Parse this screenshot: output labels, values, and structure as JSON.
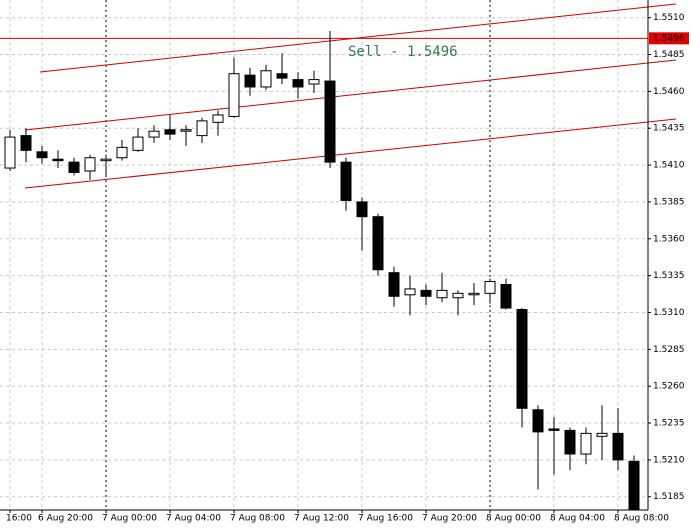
{
  "chart_data": {
    "type": "candlestick",
    "categories": [
      "16:00",
      null,
      "6 Aug 20:00",
      null,
      null,
      null,
      "7 Aug 00:00",
      null,
      null,
      null,
      "7 Aug 04:00",
      null,
      null,
      null,
      "7 Aug 08:00",
      null,
      null,
      null,
      "7 Aug 12:00",
      null,
      null,
      null,
      "7 Aug 16:00",
      null,
      null,
      null,
      "7 Aug 20:00",
      null,
      null,
      null,
      "8 Aug 00:00",
      null,
      null,
      null,
      "8 Aug 04:00",
      null,
      null,
      null,
      "8 Aug 08:00",
      null
    ],
    "open": [
      1.5408,
      1.543,
      1.5419,
      1.5414,
      1.5412,
      1.5406,
      1.5413,
      1.5415,
      1.542,
      1.5429,
      1.5434,
      1.5433,
      1.543,
      1.5439,
      1.5443,
      1.5471,
      1.5463,
      1.5472,
      1.5468,
      1.5465,
      1.5467,
      1.5412,
      1.5385,
      1.5375,
      1.5337,
      1.5322,
      1.5325,
      1.532,
      1.532,
      1.5322,
      1.5323,
      1.5329,
      1.5312,
      1.5244,
      1.5231,
      1.523,
      1.5214,
      1.5226,
      1.5228,
      1.5209
    ],
    "high": [
      1.5434,
      1.5435,
      1.5423,
      1.542,
      1.5415,
      1.5417,
      1.5417,
      1.5427,
      1.5435,
      1.5437,
      1.5444,
      1.5437,
      1.5442,
      1.5447,
      1.5483,
      1.5476,
      1.5478,
      1.5486,
      1.5473,
      1.5474,
      1.5501,
      1.5415,
      1.5388,
      1.5377,
      1.5341,
      1.5335,
      1.5329,
      1.5337,
      1.5325,
      1.533,
      1.5333,
      1.5333,
      1.5313,
      1.5247,
      1.5239,
      1.5232,
      1.5232,
      1.5247,
      1.5245,
      1.5213
    ],
    "low": [
      1.5406,
      1.5412,
      1.5411,
      1.5408,
      1.5403,
      1.54,
      1.5403,
      1.5413,
      1.5419,
      1.5425,
      1.5427,
      1.5423,
      1.5425,
      1.543,
      1.5442,
      1.5457,
      1.5461,
      1.5465,
      1.5455,
      1.5459,
      1.5408,
      1.5379,
      1.5352,
      1.5335,
      1.5314,
      1.5308,
      1.5315,
      1.5317,
      1.5308,
      1.5315,
      1.5316,
      1.5312,
      1.5232,
      1.519,
      1.52,
      1.5203,
      1.5207,
      1.521,
      1.5203,
      1.5176
    ],
    "close": [
      1.5429,
      1.542,
      1.5415,
      1.5413,
      1.5405,
      1.5415,
      1.5414,
      1.5422,
      1.5429,
      1.5433,
      1.5431,
      1.5434,
      1.544,
      1.5444,
      1.5472,
      1.5463,
      1.5474,
      1.5469,
      1.5463,
      1.5468,
      1.5412,
      1.5386,
      1.5375,
      1.5339,
      1.5321,
      1.5326,
      1.5321,
      1.5325,
      1.5323,
      1.5323,
      1.5331,
      1.5313,
      1.5245,
      1.5229,
      1.523,
      1.5214,
      1.5228,
      1.5228,
      1.521,
      1.5176
    ],
    "ylim": [
      1.5176,
      1.5522
    ],
    "yticks": [
      {
        "value": 1.551,
        "label": "1.5510"
      },
      1.5485,
      {
        "value": 1.546,
        "label": "1.5460"
      },
      1.5435,
      {
        "value": 1.541,
        "label": "1.5410"
      },
      1.5385,
      {
        "value": 1.536,
        "label": "1.5360"
      },
      1.5335,
      {
        "value": 1.531,
        "label": "1.5310"
      },
      1.5285,
      {
        "value": 1.526,
        "label": "1.5260"
      },
      1.5235,
      {
        "value": 1.521,
        "label": "1.5210"
      },
      1.5185
    ],
    "grid": true,
    "up_color": "#ffffff",
    "down_color": "#000000",
    "price_line": 1.5496,
    "price_line_color": "#e00000",
    "annotation": "Sell - 1.5496"
  }
}
